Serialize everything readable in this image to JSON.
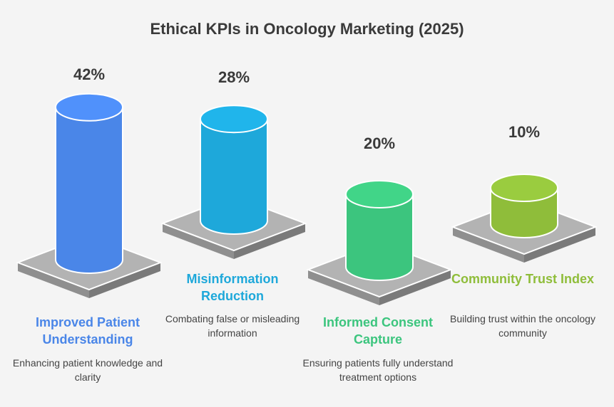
{
  "title": "Ethical KPIs in Oncology Marketing (2025)",
  "chart_data": {
    "type": "bar",
    "title": "Ethical KPIs in Oncology Marketing (2025)",
    "categories": [
      "Improved Patient Understanding",
      "Misinformation Reduction",
      "Informed Consent Capture",
      "Community Trust Index"
    ],
    "values": [
      42,
      28,
      20,
      10
    ],
    "value_labels": [
      "42%",
      "28%",
      "20%",
      "10%"
    ],
    "unit": "%",
    "colors": [
      "#4a86e8",
      "#1ea8da",
      "#3cc57e",
      "#8fbd3a"
    ],
    "descriptions": [
      "Enhancing patient knowledge and clarity",
      "Combating false or misleading information",
      "Ensuring patients fully understand treatment options",
      "Building trust within the oncology community"
    ]
  }
}
